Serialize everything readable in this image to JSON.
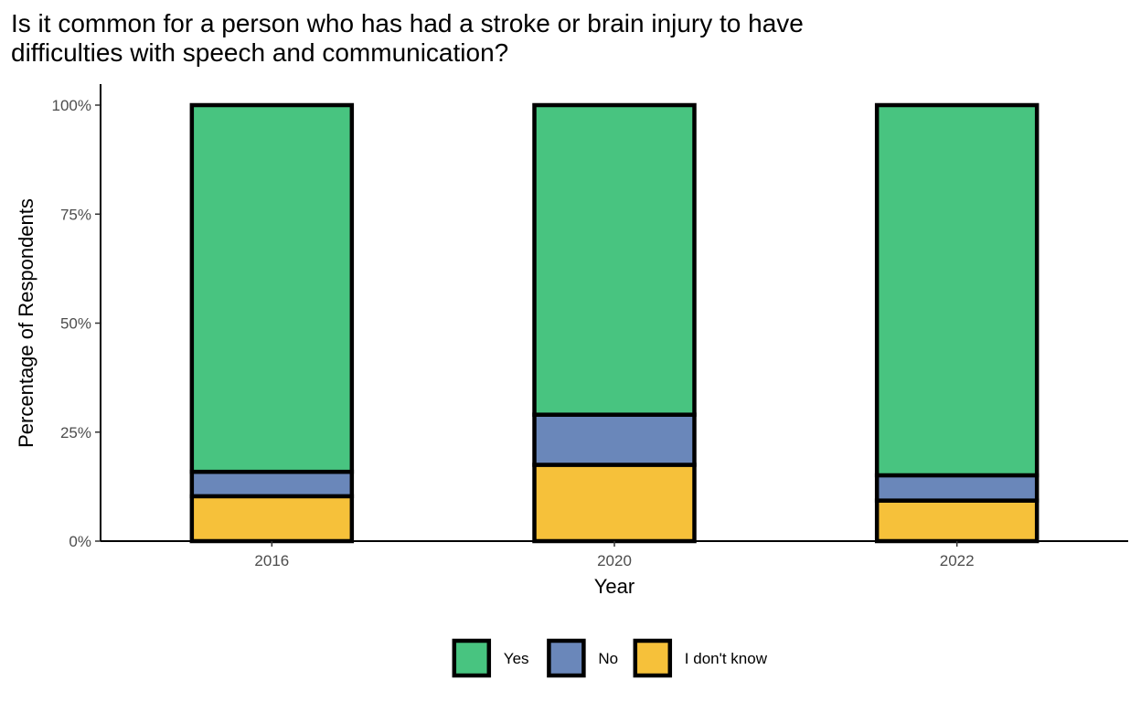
{
  "chart_data": {
    "type": "bar",
    "stacked": true,
    "title_lines": [
      "Is it common for a person who has had a stroke or brain injury to have",
      "difficulties with speech and communication?"
    ],
    "xlabel": "Year",
    "ylabel": "Percentage of Respondents",
    "categories": [
      "2016",
      "2020",
      "2022"
    ],
    "ylim": [
      0,
      100
    ],
    "yticks": [
      0,
      25,
      50,
      75,
      100
    ],
    "ytick_labels": [
      "0%",
      "25%",
      "50%",
      "75%",
      "100%"
    ],
    "series": [
      {
        "name": "I don't know",
        "color": "#F6C13A",
        "values": [
          10.3,
          17.5,
          9.3
        ]
      },
      {
        "name": "No",
        "color": "#6A87BA",
        "values": [
          5.6,
          11.5,
          5.8
        ]
      },
      {
        "name": "Yes",
        "color": "#48C480",
        "values": [
          84.1,
          71.0,
          84.9
        ]
      }
    ],
    "legend_order": [
      "Yes",
      "No",
      "I don't know"
    ],
    "legend_position": "bottom",
    "grid": false
  }
}
